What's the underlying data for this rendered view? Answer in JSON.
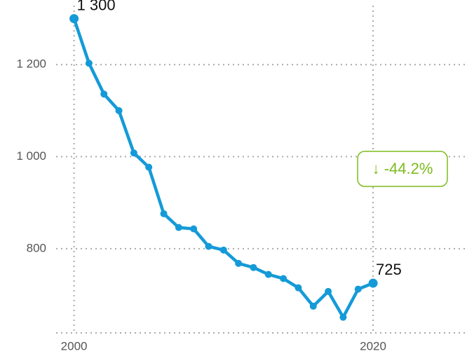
{
  "chart_data": {
    "type": "line",
    "x": [
      2000,
      2001,
      2002,
      2003,
      2004,
      2005,
      2006,
      2007,
      2008,
      2009,
      2010,
      2011,
      2012,
      2013,
      2014,
      2015,
      2016,
      2017,
      2018,
      2019,
      2020
    ],
    "series": [
      {
        "color": "#159ad8",
        "values": [
          1300,
          1203,
          1136,
          1100,
          1008,
          977,
          876,
          846,
          843,
          805,
          797,
          768,
          759,
          744,
          735,
          715,
          675,
          707,
          651,
          712,
          725
        ],
        "value_labels": [
          "1 300",
          null,
          null,
          null,
          null,
          null,
          null,
          null,
          null,
          null,
          null,
          null,
          null,
          null,
          null,
          null,
          null,
          null,
          null,
          null,
          "725"
        ]
      }
    ],
    "xlim": [
      1998.8,
      2026
    ],
    "xticks": [
      2000,
      2020
    ],
    "ylim": [
      617,
      1310
    ],
    "yticks": [
      {
        "value": 800,
        "label": "800"
      },
      {
        "value": 1000,
        "label": "1 000"
      },
      {
        "value": 1200,
        "label": "1 200"
      }
    ],
    "grid": true,
    "annotation": {
      "text": "↓ -44.2%",
      "color": "#7dbb1e"
    }
  }
}
